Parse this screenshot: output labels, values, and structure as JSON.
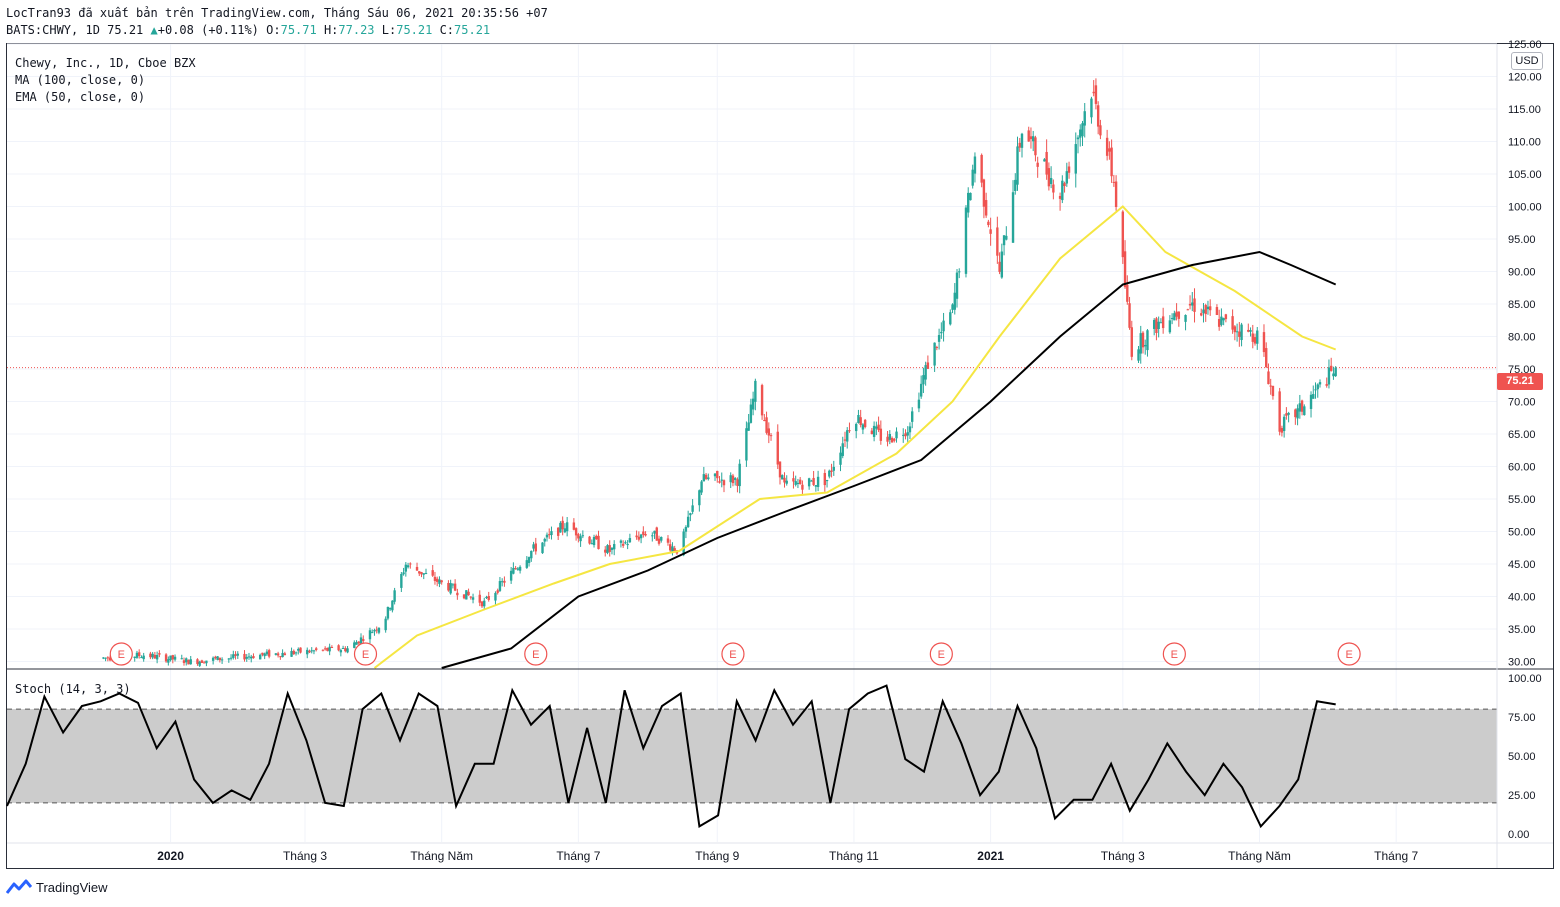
{
  "header": {
    "line1": "LocTran93 đã xuất bản trên TradingView.com, Tháng Sáu 06, 2021 20:35:56 +07",
    "symbol": "BATS:CHWY, 1D 75.21",
    "change": "+0.08 (+0.11%)",
    "open_label": "O:",
    "open": "75.71",
    "high_label": "H:",
    "high": "77.23",
    "low_label": "L:",
    "low": "75.21",
    "close_label": "C:",
    "close": "75.21"
  },
  "legend": {
    "title": "Chewy, Inc., 1D, Cboe BZX",
    "ma": "MA (100, close, 0)",
    "ema": "EMA (50, close, 0)",
    "stoch": "Stoch (14, 3, 3)"
  },
  "currency_label": "USD",
  "last_price_tag": "75.21",
  "earnings_marker": "E",
  "footer": {
    "brand": "TradingView"
  },
  "colors": {
    "up": "#26a69a",
    "down": "#ef5350",
    "ma": "#000000",
    "ema": "#f5e642",
    "band": "#cccccc",
    "last_price": "#ef5350"
  },
  "chart_data": [
    {
      "type": "candlestick",
      "title": "Chewy, Inc., 1D, Cboe BZX",
      "ylim": [
        29,
        125
      ],
      "y_ticks": [
        "30.00",
        "35.00",
        "40.00",
        "45.00",
        "50.00",
        "55.00",
        "60.00",
        "65.00",
        "70.00",
        "75.00",
        "80.00",
        "85.00",
        "90.00",
        "95.00",
        "100.00",
        "105.00",
        "110.00",
        "115.00",
        "120.00",
        "125.00"
      ],
      "x_ticks": [
        "2020",
        "Tháng 3",
        "Tháng Năm",
        "Tháng 7",
        "Tháng 9",
        "Tháng 11",
        "2021",
        "Tháng 3",
        "Tháng Năm",
        "Tháng 7"
      ],
      "last_price": 75.21,
      "earnings_events": [
        "2019-12",
        "2020-03",
        "2020-06",
        "2020-09",
        "2020-12",
        "2021-03",
        "2021-06"
      ],
      "close_path": [
        {
          "t": "2019-10",
          "v": 29
        },
        {
          "t": "2019-12-20",
          "v": 31
        },
        {
          "t": "2020-01-10",
          "v": 30
        },
        {
          "t": "2020-02-10",
          "v": 31
        },
        {
          "t": "2020-03-20",
          "v": 32
        },
        {
          "t": "2020-04-05",
          "v": 36
        },
        {
          "t": "2020-04-15",
          "v": 45
        },
        {
          "t": "2020-05-01",
          "v": 42
        },
        {
          "t": "2020-05-20",
          "v": 39
        },
        {
          "t": "2020-06-10",
          "v": 47
        },
        {
          "t": "2020-06-25",
          "v": 51
        },
        {
          "t": "2020-07-15",
          "v": 47
        },
        {
          "t": "2020-08-01",
          "v": 50
        },
        {
          "t": "2020-08-15",
          "v": 47
        },
        {
          "t": "2020-08-25",
          "v": 58
        },
        {
          "t": "2020-09-10",
          "v": 58
        },
        {
          "t": "2020-09-18",
          "v": 72
        },
        {
          "t": "2020-10-01",
          "v": 57
        },
        {
          "t": "2020-10-20",
          "v": 58
        },
        {
          "t": "2020-11-01",
          "v": 68
        },
        {
          "t": "2020-11-15",
          "v": 64
        },
        {
          "t": "2020-11-25",
          "v": 66
        },
        {
          "t": "2020-12-05",
          "v": 77
        },
        {
          "t": "2020-12-15",
          "v": 84
        },
        {
          "t": "2020-12-25",
          "v": 108
        },
        {
          "t": "2021-01-05",
          "v": 90
        },
        {
          "t": "2021-01-15",
          "v": 112
        },
        {
          "t": "2021-02-01",
          "v": 102
        },
        {
          "t": "2021-02-15",
          "v": 118
        },
        {
          "t": "2021-02-25",
          "v": 104
        },
        {
          "t": "2021-03-05",
          "v": 78
        },
        {
          "t": "2021-03-20",
          "v": 83
        },
        {
          "t": "2021-04-01",
          "v": 85
        },
        {
          "t": "2021-04-15",
          "v": 82
        },
        {
          "t": "2021-05-01",
          "v": 80
        },
        {
          "t": "2021-05-10",
          "v": 66
        },
        {
          "t": "2021-05-20",
          "v": 69
        },
        {
          "t": "2021-06-04",
          "v": 75.21
        }
      ],
      "series": [
        {
          "name": "MA (100, close, 0)",
          "values": [
            {
              "t": "2020-05-01",
              "v": 29
            },
            {
              "t": "2020-06-01",
              "v": 32
            },
            {
              "t": "2020-07-01",
              "v": 40
            },
            {
              "t": "2020-08-01",
              "v": 44
            },
            {
              "t": "2020-09-01",
              "v": 49
            },
            {
              "t": "2020-10-01",
              "v": 53
            },
            {
              "t": "2020-11-01",
              "v": 57
            },
            {
              "t": "2020-12-01",
              "v": 61
            },
            {
              "t": "2021-01-01",
              "v": 70
            },
            {
              "t": "2021-02-01",
              "v": 80
            },
            {
              "t": "2021-03-01",
              "v": 88
            },
            {
              "t": "2021-04-01",
              "v": 91
            },
            {
              "t": "2021-05-01",
              "v": 93
            },
            {
              "t": "2021-05-15",
              "v": 91
            },
            {
              "t": "2021-06-04",
              "v": 88
            }
          ]
        },
        {
          "name": "EMA (50, close, 0)",
          "values": [
            {
              "t": "2020-04-01",
              "v": 29
            },
            {
              "t": "2020-04-20",
              "v": 34
            },
            {
              "t": "2020-05-20",
              "v": 38
            },
            {
              "t": "2020-06-20",
              "v": 42
            },
            {
              "t": "2020-07-15",
              "v": 45
            },
            {
              "t": "2020-08-15",
              "v": 47
            },
            {
              "t": "2020-09-20",
              "v": 55
            },
            {
              "t": "2020-10-20",
              "v": 56
            },
            {
              "t": "2020-11-20",
              "v": 62
            },
            {
              "t": "2020-12-15",
              "v": 70
            },
            {
              "t": "2021-01-05",
              "v": 80
            },
            {
              "t": "2021-02-01",
              "v": 92
            },
            {
              "t": "2021-03-01",
              "v": 100
            },
            {
              "t": "2021-03-20",
              "v": 93
            },
            {
              "t": "2021-04-20",
              "v": 87
            },
            {
              "t": "2021-05-20",
              "v": 80
            },
            {
              "t": "2021-06-04",
              "v": 78
            }
          ]
        }
      ]
    },
    {
      "type": "line",
      "title": "Stoch (14, 3, 3)",
      "ylim": [
        -5,
        105
      ],
      "y_ticks": [
        "0.00",
        "25.00",
        "50.00",
        "75.00",
        "100.00"
      ],
      "bands": [
        20,
        80
      ],
      "values": [
        18,
        45,
        88,
        65,
        82,
        85,
        90,
        84,
        55,
        72,
        35,
        20,
        28,
        22,
        45,
        90,
        60,
        20,
        18,
        80,
        90,
        60,
        90,
        82,
        18,
        45,
        45,
        92,
        70,
        82,
        20,
        68,
        20,
        92,
        55,
        82,
        90,
        5,
        12,
        85,
        60,
        92,
        70,
        85,
        20,
        80,
        90,
        95,
        48,
        40,
        85,
        58,
        25,
        40,
        82,
        55,
        10,
        22,
        22,
        45,
        15,
        35,
        58,
        40,
        25,
        45,
        30,
        5,
        18,
        35,
        85,
        83
      ]
    }
  ]
}
